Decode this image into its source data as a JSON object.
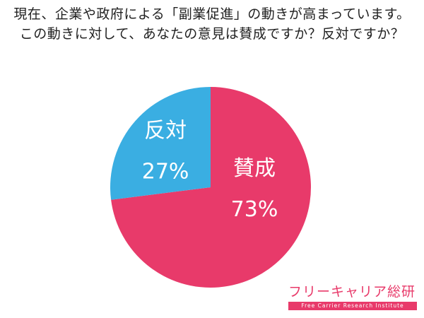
{
  "question": {
    "line1": "現在、企業や政府による「副業促進」の動きが高まっています。",
    "line2": "この動きに対して、あなたの意見は賛成ですか？反対ですか？"
  },
  "chart_data": {
    "type": "pie",
    "slices": [
      {
        "label": "賛成",
        "value": 73,
        "display": "73%",
        "color": "#e83a6a"
      },
      {
        "label": "反対",
        "value": 27,
        "display": "27%",
        "color": "#3aaee2"
      }
    ]
  },
  "brand": {
    "name": "フリーキャリア総研",
    "subtitle": "Free Carrier Research Institute"
  }
}
